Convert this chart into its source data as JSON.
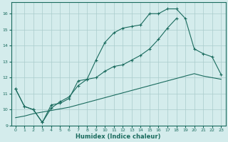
{
  "xlabel": "Humidex (Indice chaleur)",
  "bg_color": "#d4ecec",
  "grid_color": "#aacccc",
  "line_color": "#1a6b5e",
  "xlim": [
    -0.5,
    23.5
  ],
  "ylim": [
    9.0,
    16.7
  ],
  "yticks": [
    9,
    10,
    11,
    12,
    13,
    14,
    15,
    16
  ],
  "xticks": [
    0,
    1,
    2,
    3,
    4,
    5,
    6,
    7,
    8,
    9,
    10,
    11,
    12,
    13,
    14,
    15,
    16,
    17,
    18,
    19,
    20,
    21,
    22,
    23
  ],
  "curve1_x": [
    0,
    1,
    2,
    3,
    4,
    5,
    6,
    7,
    8,
    9,
    10,
    11,
    12,
    13,
    14,
    15,
    16,
    17,
    18,
    19,
    20,
    21,
    22,
    23
  ],
  "curve1_y": [
    11.3,
    10.2,
    10.0,
    9.2,
    10.3,
    10.4,
    10.7,
    11.8,
    11.9,
    13.1,
    14.2,
    14.8,
    15.1,
    15.2,
    15.3,
    16.0,
    16.0,
    16.3,
    16.3,
    15.7,
    13.8,
    13.5,
    13.3,
    12.2
  ],
  "curve2_x": [
    0,
    1,
    2,
    3,
    4,
    5,
    6,
    7,
    8,
    9,
    10,
    11,
    12,
    13,
    14,
    15,
    16,
    17,
    18
  ],
  "curve2_y": [
    11.3,
    10.2,
    10.0,
    9.2,
    10.1,
    10.5,
    10.8,
    11.5,
    11.9,
    12.0,
    12.4,
    12.7,
    12.8,
    13.1,
    13.4,
    13.8,
    14.4,
    15.1,
    15.7
  ],
  "curve3_x": [
    0,
    1,
    2,
    3,
    4,
    5,
    6,
    7,
    8,
    9,
    10,
    11,
    12,
    13,
    14,
    15,
    16,
    17,
    18,
    19,
    20,
    21,
    22,
    23
  ],
  "curve3_y": [
    9.5,
    9.6,
    9.75,
    9.85,
    9.95,
    10.05,
    10.15,
    10.3,
    10.45,
    10.6,
    10.75,
    10.9,
    11.05,
    11.2,
    11.35,
    11.5,
    11.65,
    11.8,
    11.95,
    12.1,
    12.25,
    12.1,
    12.0,
    11.9
  ]
}
